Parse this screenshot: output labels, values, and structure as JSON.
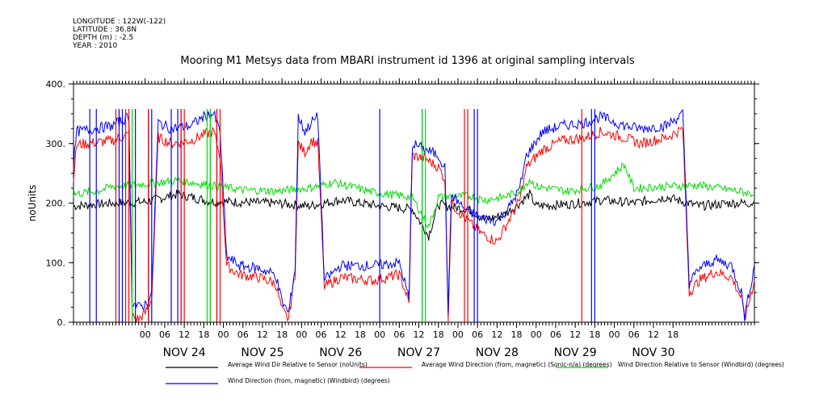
{
  "header": {
    "longitude": "LONGITUDE : 122W(-122)",
    "latitude": "LATITUDE : 36.8N",
    "depth": "DEPTH (m) : -2.5",
    "year": "YEAR : 2010"
  },
  "chart_data": {
    "type": "line",
    "title": "Mooring M1 Metsys data from MBARI instrument id 1396 at original sampling intervals",
    "ylabel": "noUnits",
    "xlabel": "",
    "ylim": [
      0,
      400
    ],
    "y_ticks": [
      "0.",
      "100.",
      "200.",
      "300.",
      "400."
    ],
    "x_range_hours": [
      -22,
      187
    ],
    "hour_tick_labels": [
      "00",
      "06",
      "12",
      "18",
      "00",
      "06",
      "12",
      "18",
      "00",
      "06",
      "12",
      "18",
      "00",
      "06",
      "12",
      "18",
      "00",
      "06",
      "12",
      "18",
      "00",
      "06",
      "12",
      "18",
      "00",
      "06",
      "12",
      "18"
    ],
    "day_labels": [
      "NOV 24",
      "NOV 25",
      "NOV 26",
      "NOV 27",
      "NOV 28",
      "NOV 29",
      "NOV 30"
    ],
    "grid": false,
    "legend_position": "bottom",
    "series": [
      {
        "name": "Average Wind Dir Relative to Sensor (noUnits)",
        "color": "#000000",
        "noise": 8,
        "points": [
          [
            -22,
            195
          ],
          [
            -10,
            200
          ],
          [
            0,
            202
          ],
          [
            10,
            215
          ],
          [
            20,
            203
          ],
          [
            40,
            200
          ],
          [
            50,
            195
          ],
          [
            60,
            205
          ],
          [
            72,
            195
          ],
          [
            82,
            190
          ],
          [
            87,
            145
          ],
          [
            90,
            198
          ],
          [
            100,
            188
          ],
          [
            104,
            172
          ],
          [
            110,
            180
          ],
          [
            115,
            200
          ],
          [
            118,
            215
          ],
          [
            120,
            195
          ],
          [
            130,
            198
          ],
          [
            140,
            205
          ],
          [
            150,
            200
          ],
          [
            160,
            210
          ],
          [
            170,
            195
          ],
          [
            180,
            200
          ],
          [
            187,
            200
          ]
        ]
      },
      {
        "name": "Average Wind Direction (from, magnetic) (Sonic-n/a) (degrees)",
        "color": "#ff0000",
        "noise": 9,
        "points": [
          [
            -22,
            245
          ],
          [
            -21,
            298
          ],
          [
            -10,
            305
          ],
          [
            -5,
            315
          ],
          [
            -4,
            10
          ],
          [
            -2,
            5
          ],
          [
            0,
            15
          ],
          [
            2,
            40
          ],
          [
            4,
            310
          ],
          [
            8,
            300
          ],
          [
            14,
            305
          ],
          [
            18,
            315
          ],
          [
            21,
            320
          ],
          [
            23,
            280
          ],
          [
            25,
            95
          ],
          [
            29,
            80
          ],
          [
            35,
            75
          ],
          [
            40,
            65
          ],
          [
            42,
            20
          ],
          [
            44,
            5
          ],
          [
            46,
            80
          ],
          [
            47,
            300
          ],
          [
            49,
            285
          ],
          [
            51,
            305
          ],
          [
            53,
            300
          ],
          [
            55,
            60
          ],
          [
            60,
            75
          ],
          [
            70,
            70
          ],
          [
            78,
            80
          ],
          [
            80,
            50
          ],
          [
            81,
            30
          ],
          [
            82,
            280
          ],
          [
            86,
            275
          ],
          [
            90,
            260
          ],
          [
            92,
            240
          ],
          [
            93,
            10
          ],
          [
            94,
            200
          ],
          [
            98,
            175
          ],
          [
            103,
            150
          ],
          [
            108,
            135
          ],
          [
            112,
            175
          ],
          [
            115,
            205
          ],
          [
            117,
            260
          ],
          [
            122,
            290
          ],
          [
            128,
            305
          ],
          [
            135,
            310
          ],
          [
            140,
            320
          ],
          [
            147,
            310
          ],
          [
            152,
            300
          ],
          [
            160,
            310
          ],
          [
            165,
            325
          ],
          [
            167,
            50
          ],
          [
            170,
            70
          ],
          [
            175,
            85
          ],
          [
            180,
            75
          ],
          [
            183,
            40
          ],
          [
            184,
            5
          ],
          [
            187,
            70
          ]
        ]
      },
      {
        "name": "Wind Direction Relative to Sensor (Windbird) (degrees)",
        "color": "#00dd00",
        "noise": 7,
        "points": [
          [
            -22,
            215
          ],
          [
            -15,
            220
          ],
          [
            -10,
            228
          ],
          [
            0,
            232
          ],
          [
            10,
            238
          ],
          [
            20,
            230
          ],
          [
            30,
            222
          ],
          [
            40,
            220
          ],
          [
            50,
            225
          ],
          [
            58,
            235
          ],
          [
            70,
            218
          ],
          [
            82,
            210
          ],
          [
            87,
            160
          ],
          [
            90,
            210
          ],
          [
            100,
            212
          ],
          [
            104,
            205
          ],
          [
            110,
            210
          ],
          [
            115,
            220
          ],
          [
            118,
            240
          ],
          [
            120,
            228
          ],
          [
            130,
            220
          ],
          [
            140,
            230
          ],
          [
            147,
            265
          ],
          [
            150,
            225
          ],
          [
            160,
            228
          ],
          [
            170,
            230
          ],
          [
            180,
            222
          ],
          [
            187,
            215
          ]
        ]
      },
      {
        "name": "Wind Direction (from, magnetic) (Windbird) (degrees)",
        "color": "#0000ff",
        "noise": 9,
        "points": [
          [
            -22,
            265
          ],
          [
            -21,
            320
          ],
          [
            -10,
            330
          ],
          [
            -5,
            345
          ],
          [
            -4,
            35
          ],
          [
            -2,
            25
          ],
          [
            0,
            30
          ],
          [
            2,
            45
          ],
          [
            4,
            335
          ],
          [
            8,
            325
          ],
          [
            14,
            330
          ],
          [
            18,
            345
          ],
          [
            21,
            350
          ],
          [
            23,
            320
          ],
          [
            25,
            110
          ],
          [
            29,
            95
          ],
          [
            35,
            90
          ],
          [
            40,
            80
          ],
          [
            42,
            35
          ],
          [
            44,
            15
          ],
          [
            46,
            90
          ],
          [
            47,
            345
          ],
          [
            49,
            320
          ],
          [
            51,
            335
          ],
          [
            53,
            345
          ],
          [
            55,
            70
          ],
          [
            60,
            95
          ],
          [
            70,
            95
          ],
          [
            78,
            100
          ],
          [
            80,
            60
          ],
          [
            81,
            40
          ],
          [
            82,
            300
          ],
          [
            86,
            290
          ],
          [
            90,
            280
          ],
          [
            92,
            260
          ],
          [
            93,
            20
          ],
          [
            94,
            215
          ],
          [
            98,
            190
          ],
          [
            103,
            175
          ],
          [
            108,
            170
          ],
          [
            112,
            195
          ],
          [
            115,
            225
          ],
          [
            117,
            280
          ],
          [
            122,
            320
          ],
          [
            128,
            330
          ],
          [
            135,
            335
          ],
          [
            140,
            345
          ],
          [
            147,
            330
          ],
          [
            152,
            325
          ],
          [
            160,
            330
          ],
          [
            165,
            350
          ],
          [
            167,
            65
          ],
          [
            170,
            90
          ],
          [
            175,
            105
          ],
          [
            180,
            95
          ],
          [
            183,
            50
          ],
          [
            184,
            10
          ],
          [
            187,
            95
          ]
        ]
      }
    ],
    "spikes": [
      {
        "color": "#0000ff",
        "x": [
          -17,
          -15,
          -8,
          -7,
          -3,
          1,
          2,
          8,
          10,
          11,
          20,
          22,
          72,
          85,
          101,
          102,
          137,
          138
        ]
      },
      {
        "color": "#ff0000",
        "x": [
          -9,
          -6,
          -5,
          1,
          11,
          12,
          22,
          23,
          98,
          99,
          134
        ]
      },
      {
        "color": "#00dd00",
        "x": [
          -4,
          19,
          20,
          85,
          86
        ]
      }
    ]
  }
}
